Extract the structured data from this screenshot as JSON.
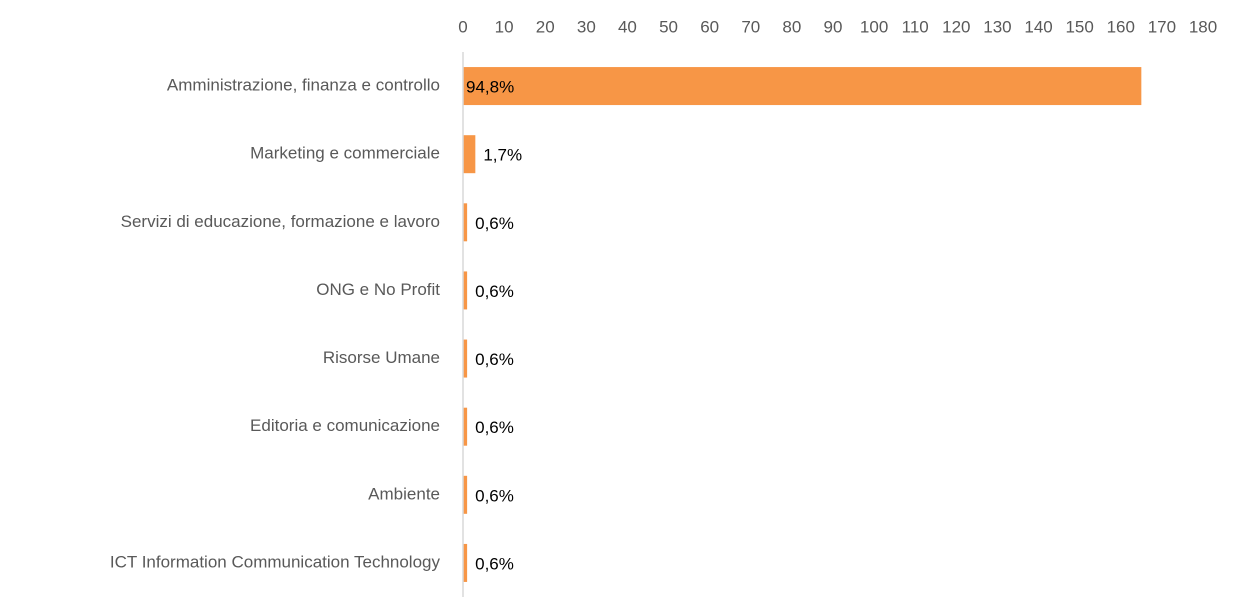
{
  "chart_data": {
    "type": "hbar",
    "categories": [
      "Amministrazione, finanza e controllo",
      "Marketing e commerciale",
      "Servizi di educazione, formazione e lavoro",
      "ONG e No Profit",
      "Risorse Umane",
      "Editoria e comunicazione",
      "Ambiente",
      "ICT Information Communication Technology"
    ],
    "values": [
      165,
      3,
      1,
      1,
      1,
      1,
      1,
      1
    ],
    "data_labels": [
      "94,8%",
      "1,7%",
      "0,6%",
      "0,6%",
      "0,6%",
      "0,6%",
      "0,6%",
      "0,6%"
    ],
    "color": "#f79646",
    "xlim": [
      0,
      180
    ],
    "xticks": [
      0,
      10,
      20,
      30,
      40,
      50,
      60,
      70,
      80,
      90,
      100,
      110,
      120,
      130,
      140,
      150,
      160,
      170,
      180
    ]
  }
}
